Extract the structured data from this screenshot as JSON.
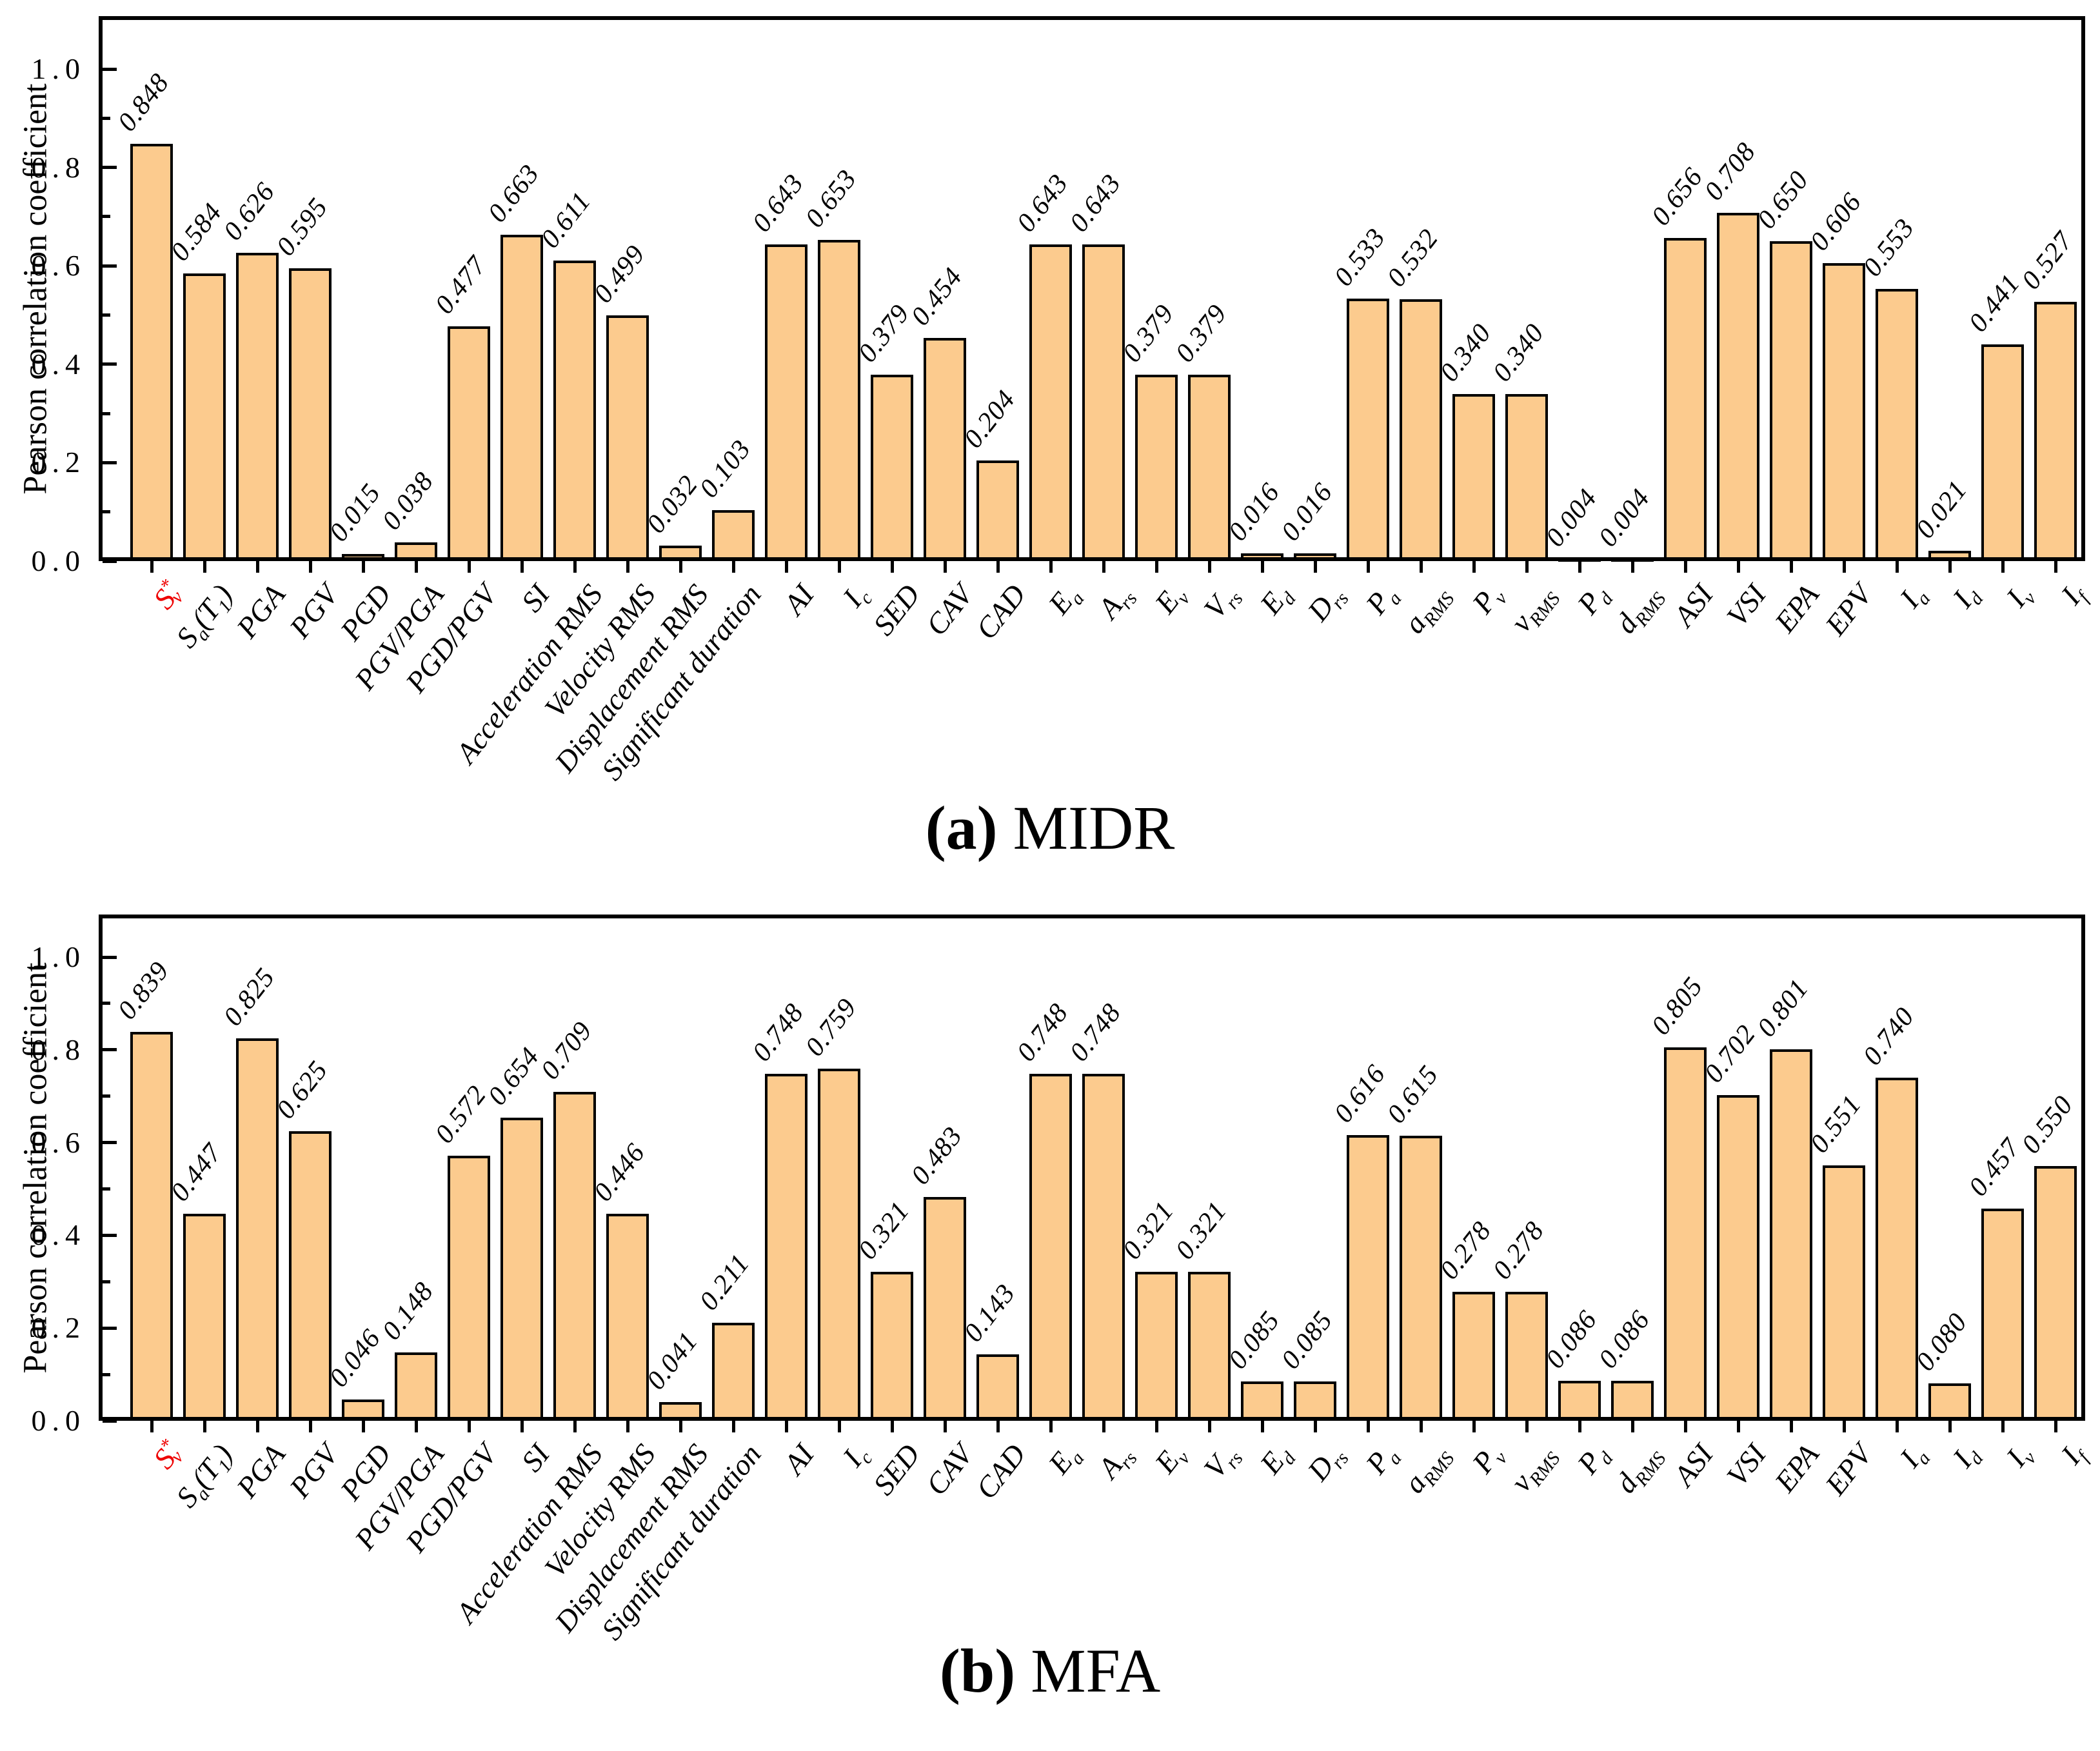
{
  "figure": {
    "background": "#ffffff",
    "bar_fill": "#FCCB8E",
    "bar_stroke": "#000000",
    "highlight_color": "#EE0000",
    "text_color": "#000000",
    "ylabel": "Pearson correlation coefficient",
    "ytick_labels": [
      "0.0",
      "0.2",
      "0.4",
      "0.6",
      "0.8",
      "1.0"
    ],
    "captions": [
      {
        "index": "(a)",
        "label": "MIDR"
      },
      {
        "index": "(b)",
        "label": "MFA"
      }
    ]
  },
  "categories_html": [
    "S<sup>*</sup><sub class='tight'>v</sub>",
    "S<sub>a</sub>(T<sub>1</sub>)",
    "PGA",
    "PGV",
    "PGD",
    "PGV/PGA",
    "PGD/PGV",
    "SI",
    "Acceleration RMS",
    "Velocity RMS",
    "Displacement RMS",
    "Significant duration",
    "AI",
    "I<sub>c</sub>",
    "SED",
    "CAV",
    "CAD",
    "E<sub>a</sub>",
    "A<sub>rs</sub>",
    "E<sub>v</sub>",
    "V<sub>rs</sub>",
    "E<sub>d</sub>",
    "D<sub>rs</sub>",
    "P<sub>a</sub>",
    "a<sub>RMS</sub>",
    "P<sub>v</sub>",
    "v<sub>RMS</sub>",
    "P<sub>d</sub>",
    "d<sub>RMS</sub>",
    "ASI",
    "VSI",
    "EPA",
    "EPV",
    "I<sub>a</sub>",
    "I<sub>d</sub>",
    "I<sub>v</sub>",
    "I<sub>f</sub>"
  ],
  "chart_data": [
    {
      "type": "bar",
      "title": "(a) MIDR",
      "xlabel": "",
      "ylabel": "Pearson correlation coefficient",
      "ylim": [
        0.0,
        1.1
      ],
      "yticks_major": [
        0.0,
        0.2,
        0.4,
        0.6,
        0.8,
        1.0
      ],
      "yticks_minor": [
        0.1,
        0.3,
        0.5,
        0.7,
        0.9
      ],
      "grid": false,
      "legend": "none",
      "value_labels_decimals": 3,
      "categories": [
        "S*v",
        "Sa(T1)",
        "PGA",
        "PGV",
        "PGD",
        "PGV/PGA",
        "PGD/PGV",
        "SI",
        "Acceleration RMS",
        "Velocity RMS",
        "Displacement RMS",
        "Significant duration",
        "AI",
        "Ic",
        "SED",
        "CAV",
        "CAD",
        "Ea",
        "Ars",
        "Ev",
        "Vrs",
        "Ed",
        "Drs",
        "Pa",
        "aRMS",
        "Pv",
        "vRMS",
        "Pd",
        "dRMS",
        "ASI",
        "VSI",
        "EPA",
        "EPV",
        "Ia",
        "Id",
        "Iv",
        "If"
      ],
      "values": [
        0.848,
        0.584,
        0.626,
        0.595,
        0.015,
        0.038,
        0.477,
        0.663,
        0.611,
        0.499,
        0.032,
        0.103,
        0.643,
        0.653,
        0.379,
        0.454,
        0.204,
        0.643,
        0.643,
        0.379,
        0.379,
        0.016,
        0.016,
        0.533,
        0.532,
        0.34,
        0.34,
        0.004,
        0.004,
        0.656,
        0.708,
        0.65,
        0.606,
        0.553,
        0.021,
        0.441,
        0.527
      ]
    },
    {
      "type": "bar",
      "title": "(b) MFA",
      "xlabel": "",
      "ylabel": "Pearson correlation coefficient",
      "ylim": [
        0.0,
        1.1
      ],
      "yticks_major": [
        0.0,
        0.2,
        0.4,
        0.6,
        0.8,
        1.0
      ],
      "yticks_minor": [
        0.1,
        0.3,
        0.5,
        0.7,
        0.9
      ],
      "grid": false,
      "legend": "none",
      "value_labels_decimals": 3,
      "categories": [
        "S*v",
        "Sa(T1)",
        "PGA",
        "PGV",
        "PGD",
        "PGV/PGA",
        "PGD/PGV",
        "SI",
        "Acceleration RMS",
        "Velocity RMS",
        "Displacement RMS",
        "Significant duration",
        "AI",
        "Ic",
        "SED",
        "CAV",
        "CAD",
        "Ea",
        "Ars",
        "Ev",
        "Vrs",
        "Ed",
        "Drs",
        "Pa",
        "aRMS",
        "Pv",
        "vRMS",
        "Pd",
        "dRMS",
        "ASI",
        "VSI",
        "EPA",
        "EPV",
        "Ia",
        "Id",
        "Iv",
        "If"
      ],
      "values": [
        0.839,
        0.447,
        0.825,
        0.625,
        0.046,
        0.148,
        0.572,
        0.654,
        0.709,
        0.446,
        0.041,
        0.211,
        0.748,
        0.759,
        0.321,
        0.483,
        0.143,
        0.748,
        0.748,
        0.321,
        0.321,
        0.085,
        0.085,
        0.616,
        0.615,
        0.278,
        0.278,
        0.086,
        0.086,
        0.805,
        0.702,
        0.801,
        0.551,
        0.74,
        0.08,
        0.457,
        0.55
      ]
    }
  ]
}
